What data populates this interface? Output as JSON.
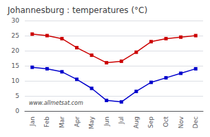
{
  "chart_data": {
    "type": "line",
    "title": "Johannesburg : temperatures (°C)",
    "categories": [
      "Jan",
      "Feb",
      "Mar",
      "Apr",
      "May",
      "Jun",
      "Jul",
      "Aug",
      "Sep",
      "Oct",
      "Nov",
      "Dec"
    ],
    "series": [
      {
        "color": "#cc0000",
        "values": [
          25.5,
          25.0,
          24.0,
          21.0,
          18.5,
          16.0,
          16.5,
          19.5,
          23.0,
          24.0,
          24.5,
          25.0
        ]
      },
      {
        "color": "#0000cc",
        "values": [
          14.5,
          14.0,
          13.0,
          10.5,
          7.5,
          3.5,
          3.0,
          6.5,
          9.5,
          11.0,
          12.5,
          14.0
        ]
      }
    ],
    "marker": "square",
    "ylim": [
      0,
      30
    ],
    "yticks": [
      0,
      5,
      10,
      15,
      20,
      25,
      30
    ],
    "grid": true,
    "annotations": [
      "www.allmetsat.com"
    ]
  }
}
